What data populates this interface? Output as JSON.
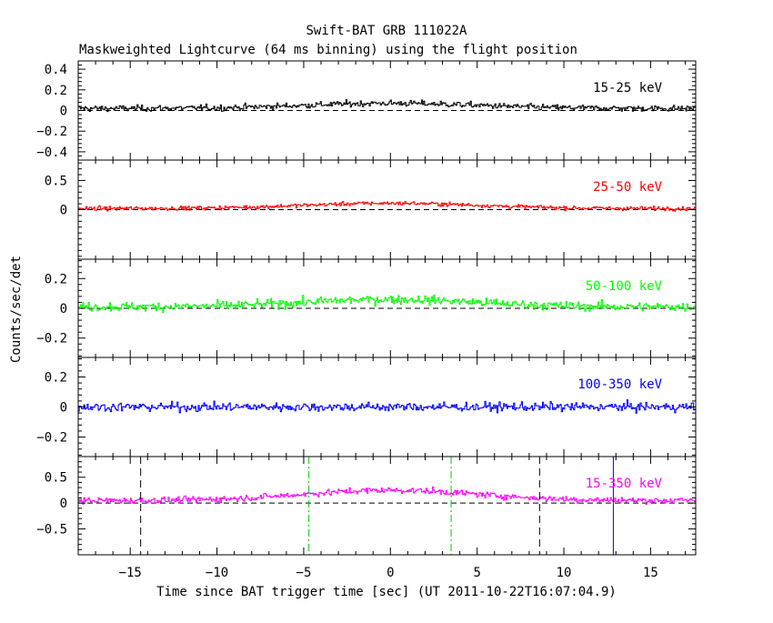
{
  "title": "Swift-BAT GRB 111022A",
  "subtitle": "Maskweighted Lightcurve (64 ms binning) using the flight position",
  "xlabel": "Time since BAT trigger time [sec] (UT 2011-10-22T16:07:04.9)",
  "ylabel": "Counts/sec/det",
  "colors": {
    "axis": "#000000",
    "background": "#ffffff"
  },
  "chart_data": [
    {
      "type": "line",
      "label": "15-25 keV",
      "color": "#000000",
      "xlim": [
        -18,
        17.6
      ],
      "ylim": [
        -0.48,
        0.48
      ],
      "yticks": [
        -0.4,
        -0.2,
        0,
        0.2,
        0.4
      ],
      "ytick_labels": [
        "−0.4",
        "−0.2",
        "0",
        "0.2",
        "0.4"
      ],
      "baseline": 0.02,
      "noise": 0.035,
      "bump": {
        "amp": 0.05,
        "center": 0,
        "width": 5
      },
      "zero_line": true
    },
    {
      "type": "line",
      "label": "25-50 keV",
      "color": "#ff0000",
      "xlim": [
        -18,
        17.6
      ],
      "ylim": [
        -0.85,
        0.85
      ],
      "yticks": [
        0,
        0.5
      ],
      "ytick_labels": [
        "0",
        "0.5"
      ],
      "baseline": 0.02,
      "noise": 0.04,
      "bump": {
        "amp": 0.09,
        "center": 0,
        "width": 5
      },
      "zero_line": true
    },
    {
      "type": "line",
      "label": "50-100 keV",
      "color": "#00ff00",
      "xlim": [
        -18,
        17.6
      ],
      "ylim": [
        -0.33,
        0.33
      ],
      "yticks": [
        -0.2,
        0,
        0.2
      ],
      "ytick_labels": [
        "−0.2",
        "0",
        "0.2"
      ],
      "baseline": 0.01,
      "noise": 0.035,
      "bump": {
        "amp": 0.05,
        "center": 0,
        "width": 5
      },
      "zero_line": true
    },
    {
      "type": "line",
      "label": "100-350 keV",
      "color": "#0000ff",
      "xlim": [
        -18,
        17.6
      ],
      "ylim": [
        -0.33,
        0.33
      ],
      "yticks": [
        -0.2,
        0,
        0.2
      ],
      "ytick_labels": [
        "−0.2",
        "0",
        "0.2"
      ],
      "baseline": 0.0,
      "noise": 0.035,
      "bump": {
        "amp": 0.0,
        "center": 0,
        "width": 5
      },
      "zero_line": false
    },
    {
      "type": "line",
      "label": "15-350 keV",
      "color": "#ff00ff",
      "xlim": [
        -18,
        17.6
      ],
      "ylim": [
        -1.0,
        0.9
      ],
      "yticks": [
        -0.5,
        0,
        0.5
      ],
      "ytick_labels": [
        "−0.5",
        "0",
        "0.5"
      ],
      "baseline": 0.05,
      "noise": 0.07,
      "bump": {
        "amp": 0.2,
        "center": 0,
        "width": 5
      },
      "zero_line": true,
      "markers": [
        {
          "x": -14.4,
          "color": "#000000",
          "style": "dashed"
        },
        {
          "x": -4.7,
          "color": "#00cc00",
          "style": "dashdot"
        },
        {
          "x": 3.5,
          "color": "#00cc00",
          "style": "dashdot"
        },
        {
          "x": 8.6,
          "color": "#000000",
          "style": "dashed"
        },
        {
          "x": 12.85,
          "color": "#0000ff",
          "style": "solid"
        }
      ]
    }
  ],
  "xaxis": {
    "ticks": [
      -15,
      -10,
      -5,
      0,
      5,
      10,
      15
    ],
    "tick_labels": [
      "−15",
      "−10",
      "−5",
      "0",
      "5",
      "10",
      "15"
    ],
    "minor_step": 1
  }
}
